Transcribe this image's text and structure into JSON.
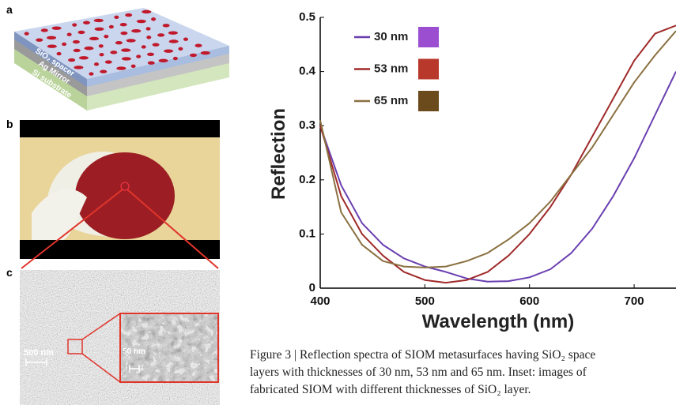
{
  "panels": {
    "a": {
      "label": "a",
      "layers": [
        "SiO₂ spacer",
        "Ag Mirror",
        "Si substrate"
      ]
    },
    "b": {
      "label": "b"
    },
    "c": {
      "label": "c",
      "inset_scale": "50 nm",
      "scale": "500 nm"
    }
  },
  "chart_data": {
    "type": "line",
    "xlabel": "Wavelength (nm)",
    "ylabel": "Reflection",
    "x": [
      400,
      420,
      440,
      460,
      480,
      500,
      520,
      540,
      560,
      580,
      600,
      620,
      640,
      660,
      680,
      700,
      720,
      740
    ],
    "series": [
      {
        "name": "30 nm",
        "color": "#6a3fb0",
        "swatch": "#9b4fd0",
        "values": [
          0.3,
          0.19,
          0.12,
          0.08,
          0.055,
          0.04,
          0.03,
          0.018,
          0.012,
          0.013,
          0.02,
          0.035,
          0.065,
          0.11,
          0.17,
          0.24,
          0.32,
          0.4
        ]
      },
      {
        "name": "53 nm",
        "color": "#a02a2a",
        "swatch": "#b8392c",
        "values": [
          0.3,
          0.17,
          0.1,
          0.06,
          0.03,
          0.015,
          0.01,
          0.015,
          0.03,
          0.06,
          0.1,
          0.15,
          0.21,
          0.28,
          0.35,
          0.42,
          0.47,
          0.485
        ]
      },
      {
        "name": "65 nm",
        "color": "#8a7040",
        "swatch": "#6b4a1c",
        "values": [
          0.31,
          0.14,
          0.08,
          0.05,
          0.04,
          0.038,
          0.04,
          0.05,
          0.065,
          0.09,
          0.12,
          0.16,
          0.21,
          0.26,
          0.32,
          0.38,
          0.43,
          0.475
        ]
      }
    ],
    "xlim": [
      400,
      740
    ],
    "ylim": [
      0,
      0.5
    ],
    "xticks": [
      400,
      500,
      600,
      700
    ],
    "yticks": [
      0,
      0.1,
      0.2,
      0.3,
      0.4,
      0.5
    ]
  },
  "caption": {
    "lines": [
      "Figure 3 | Reflection spectra of SIOM metasurfaces having SiO₂ space",
      "layers with thicknesses of 30 nm, 53 nm and 65 nm. Inset: images of",
      "fabricated SIOM with different thicknesses of SiO₂ layer."
    ]
  }
}
